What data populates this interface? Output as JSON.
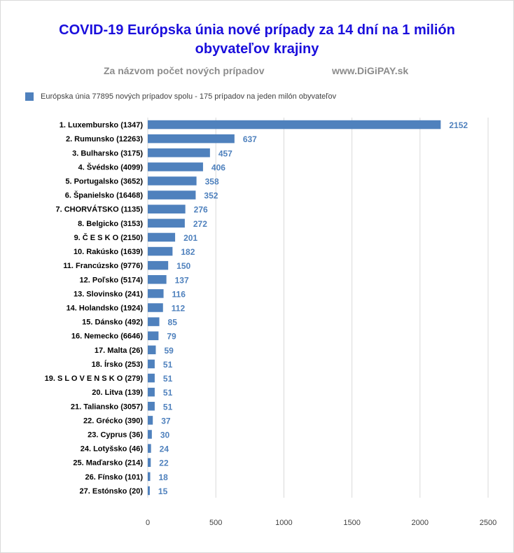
{
  "title_line1": "COVID-19 Európska únia  nové prípady za 14 dní  na 1 milión",
  "title_line2": "obyvateľov krajiny",
  "subtitle_left": "Za názvom počet nových prípadov",
  "subtitle_right": "www.DiGiPAY.sk",
  "colors": {
    "bar": "#4f81bd",
    "title": "#1a0edc",
    "grid": "#d9d9d9"
  },
  "chart_data": {
    "type": "bar",
    "orientation": "horizontal",
    "categories": [
      "1. Luxembursko (1347)",
      "2. Rumunsko (12263)",
      "3. Bulharsko (3175)",
      "4. Švédsko (4099)",
      "5. Portugalsko (3652)",
      "6. Španielsko (16468)",
      "7. CHORVÁTSKO (1135)",
      "8. Belgicko (3153)",
      "9. Č E S K O (2150)",
      "10. Rakúsko (1639)",
      "11. Francúzsko (9776)",
      "12. Poľsko (5174)",
      "13. Slovinsko (241)",
      "14. Holandsko (1924)",
      "15. Dánsko (492)",
      "16. Nemecko (6646)",
      "17. Malta (26)",
      "18. Írsko (253)",
      "19.  S L O V E N S K O (279)",
      "20. Litva (139)",
      "21. Taliansko (3057)",
      "22. Grécko (390)",
      "23. Cyprus (36)",
      "24. Lotyšsko (46)",
      "25. Maďarsko (214)",
      "26. Fínsko (101)",
      "27. Estónsko (20)"
    ],
    "series": [
      {
        "name": "Európska únia 77895 nových prípadov spolu -  175 prípadov na jeden milón obyvateľov",
        "values": [
          2152,
          637,
          457,
          406,
          358,
          352,
          276,
          272,
          201,
          182,
          150,
          137,
          116,
          112,
          85,
          79,
          59,
          51,
          51,
          51,
          51,
          37,
          30,
          24,
          22,
          18,
          15
        ]
      }
    ],
    "xlim": [
      0,
      2500
    ],
    "xticks": [
      "0",
      "500",
      "1000",
      "1500",
      "2000",
      "2500"
    ],
    "grid": "vertical",
    "legend_position": "top-left",
    "data_labels": true
  }
}
